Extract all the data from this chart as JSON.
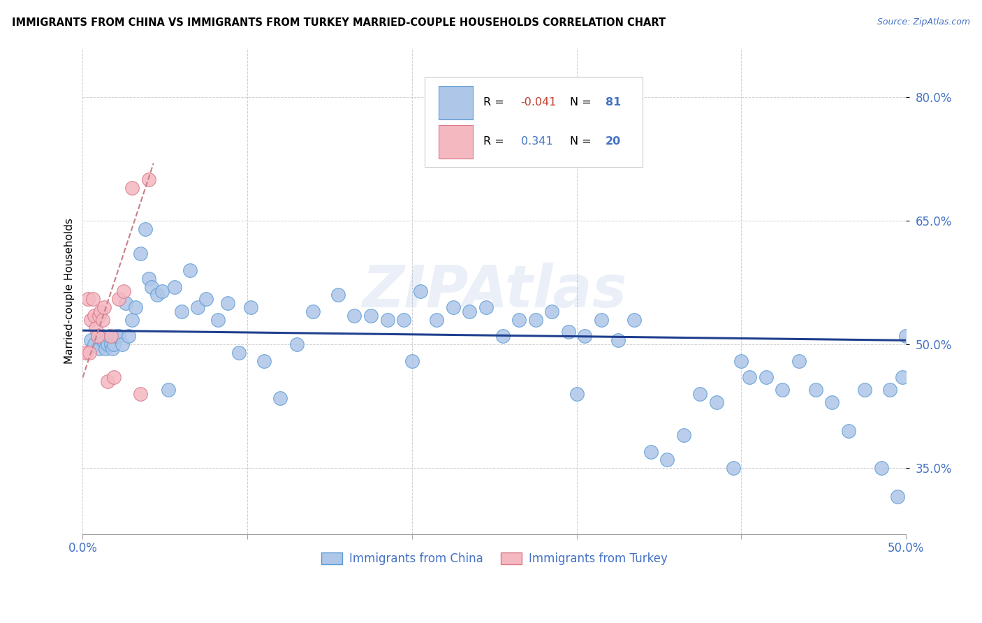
{
  "title": "IMMIGRANTS FROM CHINA VS IMMIGRANTS FROM TURKEY MARRIED-COUPLE HOUSEHOLDS CORRELATION CHART",
  "source": "Source: ZipAtlas.com",
  "ylabel_label": "Married-couple Households",
  "xlim": [
    0.0,
    0.5
  ],
  "ylim": [
    0.27,
    0.86
  ],
  "xtick_positions": [
    0.0,
    0.1,
    0.2,
    0.3,
    0.4,
    0.5
  ],
  "xtick_labels": [
    "0.0%",
    "",
    "",
    "",
    "",
    "50.0%"
  ],
  "ytick_positions": [
    0.35,
    0.5,
    0.65,
    0.8
  ],
  "ytick_labels": [
    "35.0%",
    "50.0%",
    "65.0%",
    "80.0%"
  ],
  "china_color": "#aec6e8",
  "china_edge": "#5b9bd5",
  "turkey_color": "#f4b8c1",
  "turkey_edge": "#d9788a",
  "trendline_china_color": "#1f3f8f",
  "trendline_turkey_color": "#c9808a",
  "watermark": "ZIPAtlas",
  "china_x": [
    0.005,
    0.007,
    0.009,
    0.01,
    0.011,
    0.012,
    0.013,
    0.014,
    0.015,
    0.016,
    0.017,
    0.018,
    0.019,
    0.02,
    0.022,
    0.024,
    0.026,
    0.028,
    0.03,
    0.032,
    0.035,
    0.038,
    0.04,
    0.042,
    0.045,
    0.048,
    0.052,
    0.056,
    0.06,
    0.065,
    0.07,
    0.075,
    0.082,
    0.088,
    0.095,
    0.102,
    0.11,
    0.12,
    0.13,
    0.14,
    0.155,
    0.165,
    0.175,
    0.185,
    0.195,
    0.205,
    0.215,
    0.225,
    0.235,
    0.245,
    0.255,
    0.265,
    0.275,
    0.285,
    0.295,
    0.305,
    0.315,
    0.325,
    0.335,
    0.345,
    0.355,
    0.365,
    0.375,
    0.385,
    0.395,
    0.405,
    0.415,
    0.425,
    0.435,
    0.445,
    0.455,
    0.465,
    0.475,
    0.485,
    0.49,
    0.495,
    0.498,
    0.5,
    0.2,
    0.3,
    0.4
  ],
  "china_y": [
    0.505,
    0.5,
    0.51,
    0.495,
    0.508,
    0.51,
    0.503,
    0.495,
    0.5,
    0.51,
    0.5,
    0.495,
    0.5,
    0.51,
    0.51,
    0.5,
    0.55,
    0.51,
    0.53,
    0.545,
    0.61,
    0.64,
    0.58,
    0.57,
    0.56,
    0.565,
    0.445,
    0.57,
    0.54,
    0.59,
    0.545,
    0.555,
    0.53,
    0.55,
    0.49,
    0.545,
    0.48,
    0.435,
    0.5,
    0.54,
    0.56,
    0.535,
    0.535,
    0.53,
    0.53,
    0.565,
    0.53,
    0.545,
    0.54,
    0.545,
    0.51,
    0.53,
    0.53,
    0.54,
    0.515,
    0.51,
    0.53,
    0.505,
    0.53,
    0.37,
    0.36,
    0.39,
    0.44,
    0.43,
    0.35,
    0.46,
    0.46,
    0.445,
    0.48,
    0.445,
    0.43,
    0.395,
    0.445,
    0.35,
    0.445,
    0.315,
    0.46,
    0.51,
    0.48,
    0.44,
    0.48
  ],
  "turkey_x": [
    0.002,
    0.003,
    0.004,
    0.005,
    0.006,
    0.007,
    0.008,
    0.009,
    0.01,
    0.011,
    0.012,
    0.013,
    0.015,
    0.017,
    0.019,
    0.022,
    0.025,
    0.03,
    0.035,
    0.04
  ],
  "turkey_y": [
    0.49,
    0.555,
    0.49,
    0.53,
    0.555,
    0.535,
    0.52,
    0.51,
    0.535,
    0.54,
    0.53,
    0.545,
    0.455,
    0.51,
    0.46,
    0.555,
    0.565,
    0.69,
    0.44,
    0.7
  ],
  "legend_R_china": "-0.041",
  "legend_N_china": "81",
  "legend_R_turkey": "0.341",
  "legend_N_turkey": "20"
}
